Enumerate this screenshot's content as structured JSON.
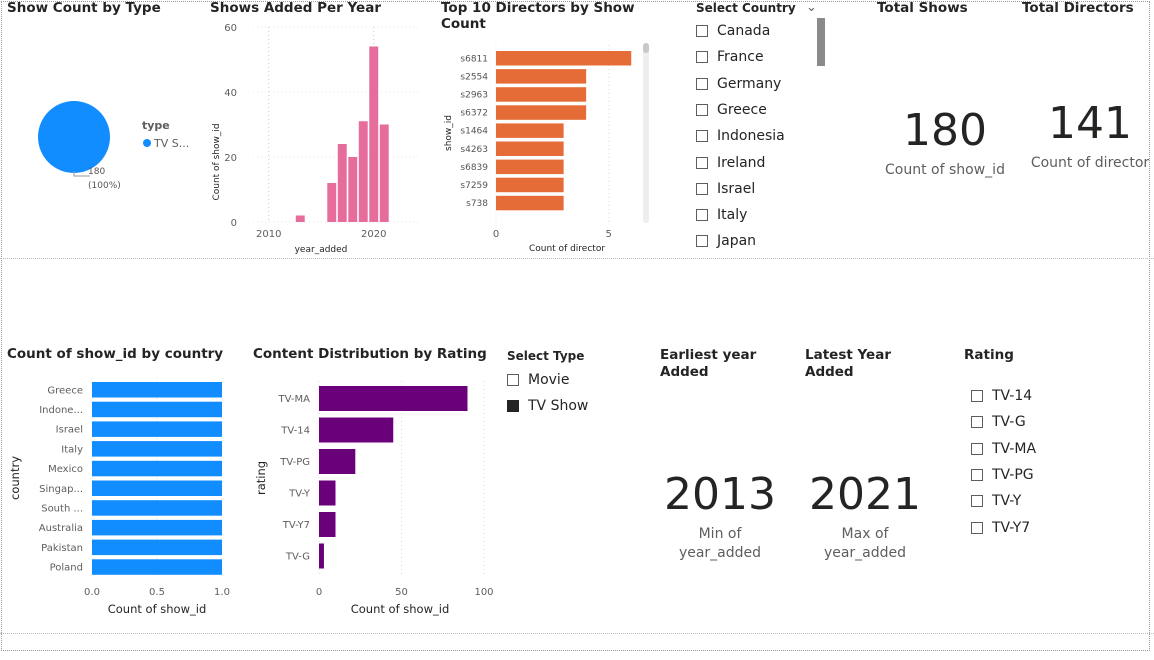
{
  "visuals": {
    "type_pie": {
      "title": "Show Count by Type",
      "legend_title": "type",
      "legend_item": "TV S...",
      "data_label_1": "180",
      "data_label_2": "(100%)",
      "color": "#118DFF"
    },
    "year_chart": {
      "title": "Shows Added Per Year",
      "ylabel": "Count of show_id",
      "xlabel": "year_added",
      "color": "#E66C9C"
    },
    "directors_chart": {
      "title_line1": "Top 10 Directors by Show",
      "title_line2": "Count",
      "ylabel": "show_id",
      "xlabel": "Count of director",
      "color": "#E66C37"
    },
    "country_slicer": {
      "title": "Select Country",
      "items": [
        "Canada",
        "France",
        "Germany",
        "Greece",
        "Indonesia",
        "Ireland",
        "Israel",
        "Italy",
        "Japan"
      ]
    },
    "total_shows": {
      "title": "Total Shows",
      "value": "180",
      "label": "Count of show_id"
    },
    "total_directors": {
      "title": "Total Directors",
      "value": "141",
      "label": "Count of director"
    },
    "country_chart": {
      "title": "Count of show_id by country",
      "ylabel": "country",
      "xlabel": "Count of show_id",
      "color": "#118DFF"
    },
    "rating_chart": {
      "title": "Content Distribution by Rating",
      "ylabel": "rating",
      "xlabel": "Count of show_id",
      "color": "#6B007B"
    },
    "type_slicer": {
      "title": "Select Type",
      "items": [
        {
          "label": "Movie",
          "checked": false
        },
        {
          "label": "TV Show",
          "checked": true
        }
      ]
    },
    "earliest_year": {
      "title_line1": "Earliest year",
      "title_line2": "Added",
      "value": "2013",
      "label_line1": "Min of",
      "label_line2": "year_added"
    },
    "latest_year": {
      "title_line1": "Latest Year",
      "title_line2": "Added",
      "value": "2021",
      "label_line1": "Max of",
      "label_line2": "year_added"
    },
    "rating_slicer": {
      "title": "Rating",
      "items": [
        "TV-14",
        "TV-G",
        "TV-MA",
        "TV-PG",
        "TV-Y",
        "TV-Y7"
      ]
    }
  },
  "chart_data": [
    {
      "type": "pie",
      "title": "Show Count by Type",
      "legend_title": "type",
      "slices": [
        {
          "label": "TV Show",
          "value": 180,
          "percent": 100
        }
      ]
    },
    {
      "type": "bar",
      "title": "Shows Added Per Year",
      "xlabel": "year_added",
      "ylabel": "Count of show_id",
      "x": [
        2013,
        2014,
        2015,
        2016,
        2017,
        2018,
        2019,
        2020,
        2021
      ],
      "values": [
        2,
        0,
        0,
        12,
        24,
        20,
        31,
        54,
        30
      ],
      "xticks": [
        2010,
        2020
      ],
      "yticks": [
        0,
        20,
        40,
        60
      ],
      "ylim": [
        0,
        60
      ],
      "xlim": [
        2008.5,
        2024.5
      ]
    },
    {
      "type": "bar",
      "orientation": "horizontal",
      "title": "Top 10 Directors by Show Count",
      "xlabel": "Count of director",
      "ylabel": "show_id",
      "categories": [
        "s6811",
        "s2554",
        "s2963",
        "s6372",
        "s1464",
        "s4263",
        "s6839",
        "s7259",
        "s738"
      ],
      "values": [
        6,
        4,
        4,
        4,
        3,
        3,
        3,
        3,
        3
      ],
      "xticks": [
        0,
        5
      ],
      "xlim": [
        0,
        6.3
      ]
    },
    {
      "type": "bar",
      "orientation": "horizontal",
      "title": "Count of show_id by country",
      "xlabel": "Count of show_id",
      "ylabel": "country",
      "categories": [
        "Greece",
        "Indone...",
        "Israel",
        "Italy",
        "Mexico",
        "Singap...",
        "South ...",
        "Australia",
        "Pakistan",
        "Poland"
      ],
      "values": [
        1,
        1,
        1,
        1,
        1,
        1,
        1,
        1,
        1,
        1
      ],
      "xticks": [
        "0.0",
        "0.5",
        "1.0"
      ],
      "xlim": [
        0,
        1
      ]
    },
    {
      "type": "bar",
      "orientation": "horizontal",
      "title": "Content Distribution by Rating",
      "xlabel": "Count of show_id",
      "ylabel": "rating",
      "categories": [
        "TV-MA",
        "TV-14",
        "TV-PG",
        "TV-Y",
        "TV-Y7",
        "TV-G"
      ],
      "values": [
        90,
        45,
        22,
        10,
        10,
        3
      ],
      "xticks": [
        0,
        50,
        100
      ],
      "xlim": [
        0,
        100
      ]
    }
  ]
}
